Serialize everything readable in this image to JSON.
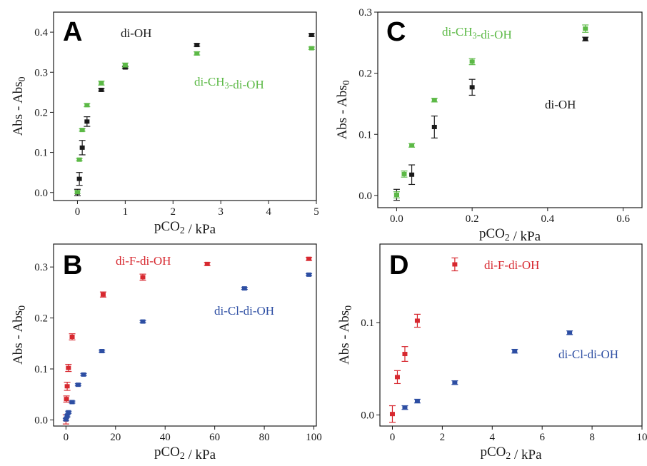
{
  "chart_data": [
    {
      "panel": "A",
      "type": "scatter",
      "xlabel": "pCO2 / kPa",
      "ylabel": "Abs - Abs0",
      "xlim": [
        -0.5,
        5
      ],
      "ylim": [
        -0.02,
        0.45
      ],
      "xticks": [
        0,
        1,
        2,
        3,
        4,
        5
      ],
      "yticks": [
        0.0,
        0.1,
        0.2,
        0.3,
        0.4
      ],
      "series": [
        {
          "name": "di-OH",
          "color": "#1a1a1a",
          "points": [
            {
              "x": 0.0,
              "y": 0.0,
              "err": 0.008
            },
            {
              "x": 0.04,
              "y": 0.034,
              "err": 0.016
            },
            {
              "x": 0.1,
              "y": 0.112,
              "err": 0.018
            },
            {
              "x": 0.2,
              "y": 0.177,
              "err": 0.012
            },
            {
              "x": 0.5,
              "y": 0.256,
              "err": 0.003
            },
            {
              "x": 1.0,
              "y": 0.312,
              "err": 0.003
            },
            {
              "x": 2.5,
              "y": 0.368,
              "err": 0.003
            },
            {
              "x": 4.9,
              "y": 0.393,
              "err": 0.003
            }
          ]
        },
        {
          "name": "di-CH3-di-OH",
          "color": "#5cb946",
          "points": [
            {
              "x": 0.0,
              "y": 0.001,
              "err": 0.003
            },
            {
              "x": 0.04,
              "y": 0.082,
              "err": 0.003
            },
            {
              "x": 0.1,
              "y": 0.156,
              "err": 0.003
            },
            {
              "x": 0.2,
              "y": 0.218,
              "err": 0.004
            },
            {
              "x": 0.5,
              "y": 0.273,
              "err": 0.005
            },
            {
              "x": 1.0,
              "y": 0.318,
              "err": 0.005
            },
            {
              "x": 2.5,
              "y": 0.347,
              "err": 0.004
            },
            {
              "x": 4.9,
              "y": 0.36,
              "err": 0.003
            }
          ]
        }
      ]
    },
    {
      "panel": "C",
      "type": "scatter",
      "xlabel": "pCO2 / kPa",
      "ylabel": "Abs - Abs0",
      "xlim": [
        -0.05,
        0.65
      ],
      "ylim": [
        -0.02,
        0.3
      ],
      "xticks": [
        0.0,
        0.2,
        0.4,
        0.6
      ],
      "yticks": [
        0.0,
        0.1,
        0.2,
        0.3
      ],
      "series": [
        {
          "name": "di-OH",
          "color": "#1a1a1a",
          "points": [
            {
              "x": 0.0,
              "y": 0.001,
              "err": 0.009
            },
            {
              "x": 0.04,
              "y": 0.034,
              "err": 0.016
            },
            {
              "x": 0.1,
              "y": 0.112,
              "err": 0.018
            },
            {
              "x": 0.2,
              "y": 0.177,
              "err": 0.013
            },
            {
              "x": 0.5,
              "y": 0.256,
              "err": 0.003
            }
          ]
        },
        {
          "name": "di-CH3-di-OH",
          "color": "#5cb946",
          "points": [
            {
              "x": 0.0,
              "y": 0.001,
              "err": 0.005
            },
            {
              "x": 0.02,
              "y": 0.035,
              "err": 0.005
            },
            {
              "x": 0.04,
              "y": 0.082,
              "err": 0.003
            },
            {
              "x": 0.1,
              "y": 0.156,
              "err": 0.003
            },
            {
              "x": 0.2,
              "y": 0.219,
              "err": 0.005
            },
            {
              "x": 0.5,
              "y": 0.273,
              "err": 0.006
            }
          ]
        }
      ]
    },
    {
      "panel": "B",
      "type": "scatter",
      "xlabel": "pCO2 / kPa",
      "ylabel": "Abs - Abs0",
      "xlim": [
        -5,
        101
      ],
      "ylim": [
        -0.012,
        0.345
      ],
      "xticks": [
        0,
        20,
        40,
        60,
        80,
        100
      ],
      "yticks": [
        0.0,
        0.1,
        0.2,
        0.3
      ],
      "series": [
        {
          "name": "di-F-di-OH",
          "color": "#d7282f",
          "points": [
            {
              "x": 0.0,
              "y": 0.001,
              "err": 0.009
            },
            {
              "x": 0.2,
              "y": 0.041,
              "err": 0.006
            },
            {
              "x": 0.5,
              "y": 0.066,
              "err": 0.008
            },
            {
              "x": 1.0,
              "y": 0.102,
              "err": 0.007
            },
            {
              "x": 2.5,
              "y": 0.163,
              "err": 0.006
            },
            {
              "x": 15,
              "y": 0.246,
              "err": 0.005
            },
            {
              "x": 31,
              "y": 0.28,
              "err": 0.006
            },
            {
              "x": 57,
              "y": 0.306,
              "err": 0.003
            },
            {
              "x": 98,
              "y": 0.316,
              "err": 0.003
            }
          ]
        },
        {
          "name": "di-Cl-di-OH",
          "color": "#2d4ea3",
          "points": [
            {
              "x": 0.0,
              "y": 0.001,
              "err": 0.002
            },
            {
              "x": 0.5,
              "y": 0.008,
              "err": 0.002
            },
            {
              "x": 1.0,
              "y": 0.015,
              "err": 0.002
            },
            {
              "x": 2.5,
              "y": 0.035,
              "err": 0.002
            },
            {
              "x": 4.9,
              "y": 0.069,
              "err": 0.002
            },
            {
              "x": 7.1,
              "y": 0.089,
              "err": 0.002
            },
            {
              "x": 14.5,
              "y": 0.135,
              "err": 0.002
            },
            {
              "x": 31,
              "y": 0.193,
              "err": 0.002
            },
            {
              "x": 72,
              "y": 0.258,
              "err": 0.002
            },
            {
              "x": 98,
              "y": 0.285,
              "err": 0.002
            }
          ]
        }
      ]
    },
    {
      "panel": "D",
      "type": "scatter",
      "xlabel": "pCO2 / kPa",
      "ylabel": "Abs - Abs0",
      "xlim": [
        -0.5,
        10
      ],
      "ylim": [
        -0.012,
        0.185
      ],
      "xticks": [
        0,
        2,
        4,
        6,
        8,
        10
      ],
      "yticks": [
        0.0,
        0.1
      ],
      "series": [
        {
          "name": "di-F-di-OH",
          "color": "#d7282f",
          "points": [
            {
              "x": 0.0,
              "y": 0.001,
              "err": 0.009
            },
            {
              "x": 0.2,
              "y": 0.041,
              "err": 0.007
            },
            {
              "x": 0.5,
              "y": 0.066,
              "err": 0.008
            },
            {
              "x": 1.0,
              "y": 0.102,
              "err": 0.007
            },
            {
              "x": 2.5,
              "y": 0.163,
              "err": 0.007
            }
          ]
        },
        {
          "name": "di-Cl-di-OH",
          "color": "#2d4ea3",
          "points": [
            {
              "x": 0.5,
              "y": 0.008,
              "err": 0.002
            },
            {
              "x": 1.0,
              "y": 0.015,
              "err": 0.002
            },
            {
              "x": 2.5,
              "y": 0.035,
              "err": 0.002
            },
            {
              "x": 4.9,
              "y": 0.069,
              "err": 0.002
            },
            {
              "x": 7.1,
              "y": 0.089,
              "err": 0.002
            }
          ]
        }
      ]
    }
  ]
}
